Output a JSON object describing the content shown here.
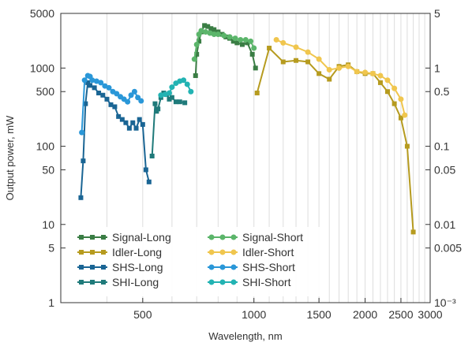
{
  "chart_data": {
    "type": "line",
    "xlabel": "Wavelength, nm",
    "ylabel": "Output power, mW",
    "x_scale": "log",
    "y_scale": "log",
    "xlim": [
      300,
      3000
    ],
    "ylim": [
      1,
      5000
    ],
    "y2lim": [
      0.001,
      5
    ],
    "x_ticks": [
      {
        "value": 500,
        "label": "500"
      },
      {
        "value": 1000,
        "label": "1000"
      },
      {
        "value": 1500,
        "label": "1500"
      },
      {
        "value": 2000,
        "label": "2000"
      },
      {
        "value": 2500,
        "label": "2500"
      },
      {
        "value": 3000,
        "label": "3000"
      }
    ],
    "y_ticks": [
      {
        "value": 5000,
        "label": "5000"
      },
      {
        "value": 1000,
        "label": "1000"
      },
      {
        "value": 500,
        "label": "500"
      },
      {
        "value": 100,
        "label": "100"
      },
      {
        "value": 50,
        "label": "50"
      },
      {
        "value": 10,
        "label": "10"
      },
      {
        "value": 5,
        "label": "5"
      },
      {
        "value": 1,
        "label": "1"
      }
    ],
    "y2_ticks": [
      {
        "value": 5,
        "label": "5"
      },
      {
        "value": 1,
        "label": "1"
      },
      {
        "value": 0.5,
        "label": "0.5"
      },
      {
        "value": 0.1,
        "label": "0.1"
      },
      {
        "value": 0.05,
        "label": "0.05"
      },
      {
        "value": 0.01,
        "label": "0.01"
      },
      {
        "value": 0.005,
        "label": "0.005"
      },
      {
        "value": 0.001,
        "label": "10⁻³"
      }
    ],
    "grid": "x-minor",
    "legend_position": "bottom-left",
    "series": [
      {
        "name": "Signal-Long",
        "color": "#3a7d44",
        "marker": "square",
        "x": [
          695,
          700,
          710,
          720,
          735,
          750,
          765,
          780,
          800,
          820,
          840,
          860,
          880,
          900,
          930,
          960,
          990,
          1010
        ],
        "y": [
          800,
          1500,
          2200,
          2900,
          3500,
          3400,
          3200,
          3100,
          2900,
          2700,
          2500,
          2400,
          2200,
          2100,
          2000,
          2100,
          1500,
          1000
        ]
      },
      {
        "name": "Signal-Short",
        "color": "#5bb56a",
        "marker": "circle",
        "x": [
          690,
          700,
          710,
          720,
          740,
          760,
          780,
          800,
          830,
          860,
          890,
          920,
          950,
          980,
          1000
        ],
        "y": [
          1300,
          2000,
          2700,
          3000,
          2900,
          2800,
          2700,
          2700,
          2600,
          2500,
          2400,
          2300,
          2300,
          2200,
          1800
        ]
      },
      {
        "name": "Idler-Long",
        "color": "#b69b1f",
        "marker": "square",
        "x": [
          1020,
          1100,
          1200,
          1300,
          1400,
          1500,
          1600,
          1700,
          1800,
          1900,
          2000,
          2100,
          2200,
          2300,
          2400,
          2500,
          2600,
          2700
        ],
        "y": [
          480,
          1800,
          1200,
          1250,
          1200,
          850,
          720,
          1050,
          1100,
          900,
          850,
          850,
          650,
          500,
          350,
          230,
          100,
          8
        ]
      },
      {
        "name": "Idler-Short",
        "color": "#f0c64e",
        "marker": "circle",
        "x": [
          1150,
          1200,
          1300,
          1400,
          1500,
          1600,
          1700,
          1800,
          1900,
          2000,
          2100,
          2200,
          2300,
          2400,
          2500,
          2560
        ],
        "y": [
          2300,
          2100,
          1850,
          1600,
          1300,
          950,
          1000,
          1050,
          900,
          880,
          850,
          800,
          700,
          550,
          400,
          250
        ]
      },
      {
        "name": "SHS-Long",
        "color": "#1a6594",
        "marker": "square",
        "x": [
          340,
          345,
          350,
          355,
          360,
          370,
          380,
          390,
          400,
          410,
          420,
          430,
          440,
          450,
          460,
          470,
          480,
          490,
          500,
          510,
          520
        ],
        "y": [
          22,
          65,
          350,
          650,
          600,
          560,
          480,
          450,
          400,
          340,
          320,
          240,
          220,
          200,
          170,
          200,
          170,
          220,
          190,
          50,
          35
        ]
      },
      {
        "name": "SHS-Short",
        "color": "#2a97d8",
        "marker": "circle",
        "x": [
          342,
          348,
          355,
          360,
          365,
          375,
          385,
          395,
          405,
          415,
          425,
          435,
          445,
          455,
          465,
          475,
          485,
          495
        ],
        "y": [
          150,
          700,
          800,
          780,
          700,
          680,
          650,
          590,
          560,
          500,
          470,
          430,
          400,
          370,
          450,
          500,
          420,
          380
        ]
      },
      {
        "name": "SHI-Long",
        "color": "#1f7a7a",
        "marker": "square",
        "x": [
          530,
          540,
          545,
          550,
          560,
          570,
          580,
          590,
          600,
          615,
          630,
          650
        ],
        "y": [
          75,
          350,
          280,
          300,
          420,
          480,
          460,
          400,
          420,
          370,
          370,
          360
        ]
      },
      {
        "name": "SHI-Short",
        "color": "#22b3b3",
        "marker": "circle",
        "x": [
          560,
          575,
          590,
          600,
          615,
          630,
          645,
          660,
          675
        ],
        "y": [
          450,
          460,
          480,
          570,
          640,
          680,
          700,
          620,
          500
        ]
      }
    ]
  }
}
